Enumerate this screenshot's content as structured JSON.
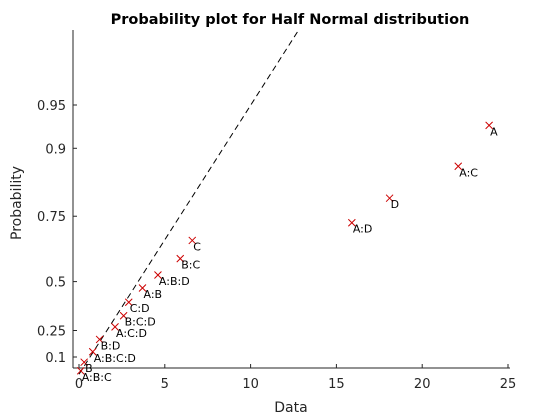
{
  "chart_data": {
    "type": "scatter",
    "title": "Probability plot for Half Normal distribution",
    "xlabel": "Data",
    "ylabel": "Probability",
    "xlim": [
      0,
      25
    ],
    "x_ticks": [
      0,
      5,
      10,
      15,
      20,
      25
    ],
    "y_ticks": [
      0.1,
      0.25,
      0.5,
      0.75,
      0.9,
      0.95
    ],
    "y_scale": "half-normal probability",
    "grid": false,
    "marker": "x",
    "marker_color": "#cc0000",
    "reference_line": {
      "style": "dashed",
      "color": "#000000",
      "points": [
        [
          0,
          0.0
        ],
        [
          12.8,
          0.99
        ]
      ]
    },
    "points": [
      {
        "label": "A:B:C",
        "x": 0.1,
        "y": 0.02
      },
      {
        "label": "B",
        "x": 0.3,
        "y": 0.07
      },
      {
        "label": "A:B:C:D",
        "x": 0.8,
        "y": 0.13
      },
      {
        "label": "B:D",
        "x": 1.2,
        "y": 0.2
      },
      {
        "label": "A:C:D",
        "x": 2.1,
        "y": 0.27
      },
      {
        "label": "B:C:D",
        "x": 2.6,
        "y": 0.33
      },
      {
        "label": "C:D",
        "x": 2.9,
        "y": 0.4
      },
      {
        "label": "A:B",
        "x": 3.7,
        "y": 0.47
      },
      {
        "label": "A:B:D",
        "x": 4.6,
        "y": 0.53
      },
      {
        "label": "B:C",
        "x": 5.9,
        "y": 0.6
      },
      {
        "label": "C",
        "x": 6.6,
        "y": 0.67
      },
      {
        "label": "A:D",
        "x": 15.9,
        "y": 0.73
      },
      {
        "label": "D",
        "x": 18.1,
        "y": 0.8
      },
      {
        "label": "A:C",
        "x": 22.1,
        "y": 0.87
      },
      {
        "label": "A",
        "x": 23.9,
        "y": 0.93
      }
    ]
  }
}
